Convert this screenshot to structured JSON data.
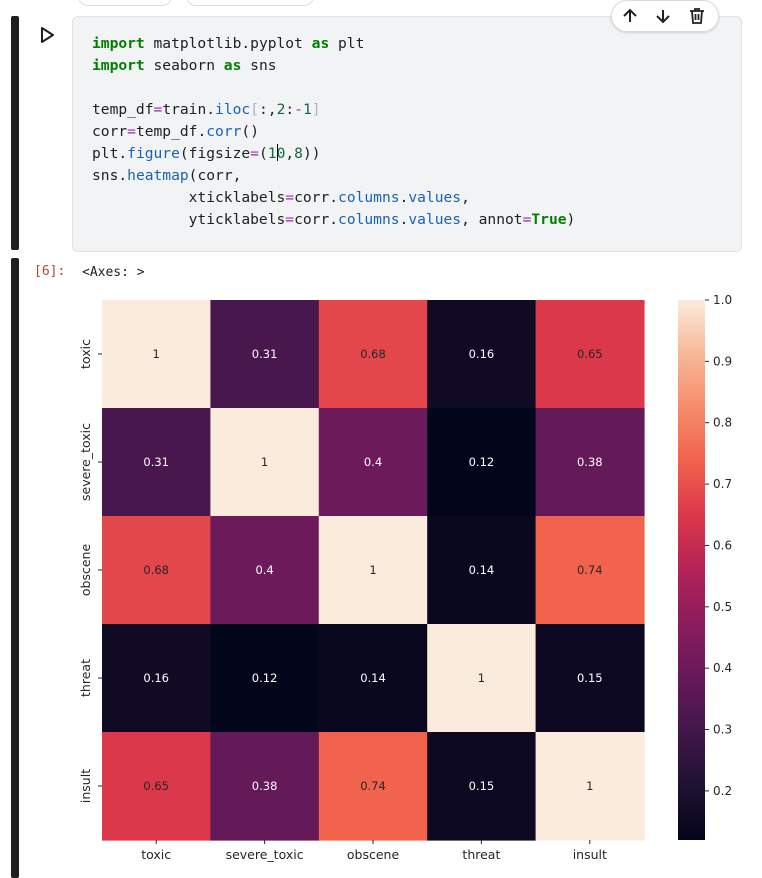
{
  "cell": {
    "code_lines": [
      [
        [
          "kw",
          "import"
        ],
        [
          "t",
          " matplotlib.pyplot "
        ],
        [
          "kw",
          "as"
        ],
        [
          "t",
          " plt"
        ]
      ],
      [
        [
          "kw",
          "import"
        ],
        [
          "t",
          " seaborn "
        ],
        [
          "kw",
          "as"
        ],
        [
          "t",
          " sns"
        ]
      ],
      [],
      [
        [
          "t",
          "temp_df"
        ],
        [
          "op",
          "="
        ],
        [
          "t",
          "train."
        ],
        [
          "fn",
          "iloc"
        ],
        [
          "br",
          "["
        ],
        [
          "t",
          ":,"
        ],
        [
          "num",
          "2"
        ],
        [
          "t",
          ":"
        ],
        [
          "op",
          "-"
        ],
        [
          "num",
          "1"
        ],
        [
          "br",
          "]"
        ]
      ],
      [
        [
          "t",
          "corr"
        ],
        [
          "op",
          "="
        ],
        [
          "t",
          "temp_df."
        ],
        [
          "fn",
          "corr"
        ],
        [
          "t",
          "()"
        ]
      ],
      [
        [
          "t",
          "plt."
        ],
        [
          "fn",
          "figure"
        ],
        [
          "t",
          "(figsize"
        ],
        [
          "op",
          "="
        ],
        [
          "t",
          "("
        ],
        [
          "num",
          "1"
        ],
        [
          "caret",
          ""
        ],
        [
          "num",
          "0"
        ],
        [
          "t",
          ","
        ],
        [
          "num",
          "8"
        ],
        [
          "t",
          "))"
        ]
      ],
      [
        [
          "t",
          "sns."
        ],
        [
          "fn",
          "heatmap"
        ],
        [
          "t",
          "(corr,"
        ]
      ],
      [
        [
          "t",
          "           xticklabels"
        ],
        [
          "op",
          "="
        ],
        [
          "t",
          "corr."
        ],
        [
          "fn",
          "columns"
        ],
        [
          "t",
          "."
        ],
        [
          "fn",
          "values"
        ],
        [
          "t",
          ","
        ]
      ],
      [
        [
          "t",
          "           yticklabels"
        ],
        [
          "op",
          "="
        ],
        [
          "t",
          "corr."
        ],
        [
          "fn",
          "columns"
        ],
        [
          "t",
          "."
        ],
        [
          "fn",
          "values"
        ],
        [
          "t",
          ", annot"
        ],
        [
          "op",
          "="
        ],
        [
          "kw",
          "True"
        ],
        [
          "t",
          ")"
        ]
      ]
    ]
  },
  "output": {
    "exec_count": "[6]:",
    "text": "<Axes: >"
  },
  "colors": {
    "cell_bar": "#1f1f1f",
    "code_bg": "#f1f3f4",
    "exec_count": "#b24a28"
  },
  "chart_data": {
    "type": "heatmap",
    "title": "",
    "labels": [
      "toxic",
      "severe_toxic",
      "obscene",
      "threat",
      "insult"
    ],
    "values": [
      [
        1,
        0.31,
        0.68,
        0.16,
        0.65
      ],
      [
        0.31,
        1,
        0.4,
        0.12,
        0.38
      ],
      [
        0.68,
        0.4,
        1,
        0.14,
        0.74
      ],
      [
        0.16,
        0.12,
        0.14,
        1,
        0.15
      ],
      [
        0.65,
        0.38,
        0.74,
        0.15,
        1
      ]
    ],
    "annotations": [
      [
        "1",
        "0.31",
        "0.68",
        "0.16",
        "0.65"
      ],
      [
        "0.31",
        "1",
        "0.4",
        "0.12",
        "0.38"
      ],
      [
        "0.68",
        "0.4",
        "1",
        "0.14",
        "0.74"
      ],
      [
        "0.16",
        "0.12",
        "0.14",
        "1",
        "0.15"
      ],
      [
        "0.65",
        "0.38",
        "0.74",
        "0.15",
        "1"
      ]
    ],
    "colorbar": {
      "range": [
        0.12,
        1.0
      ],
      "ticks": [
        1.0,
        0.9,
        0.8,
        0.7,
        0.6,
        0.5,
        0.4,
        0.3,
        0.2
      ],
      "tick_labels": [
        "1.0",
        "0.9",
        "0.8",
        "0.7",
        "0.6",
        "0.5",
        "0.4",
        "0.3",
        "0.2"
      ]
    },
    "colormap": "rocket"
  }
}
